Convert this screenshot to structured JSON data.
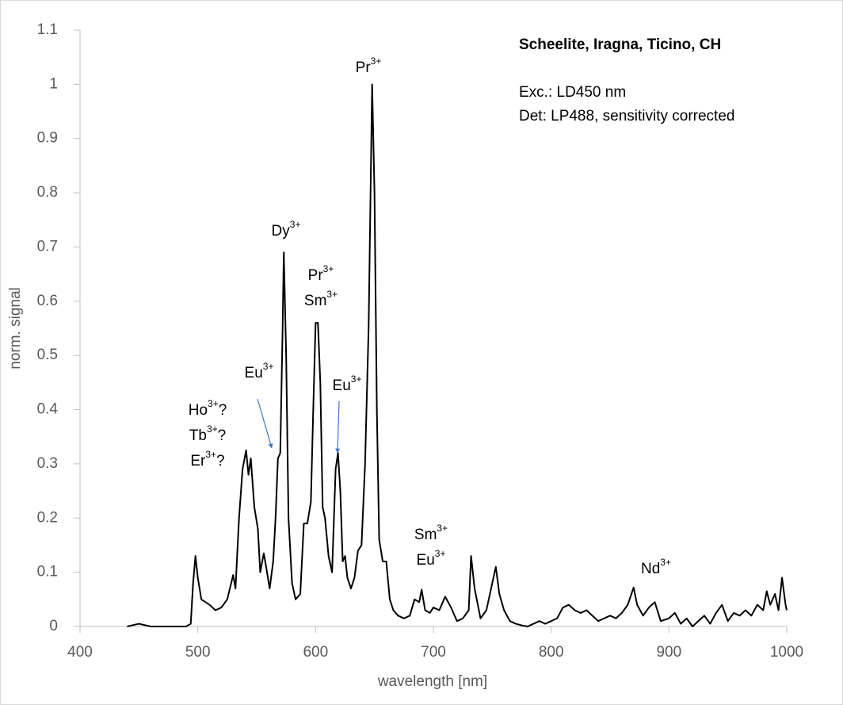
{
  "chart_data": {
    "type": "line",
    "xlabel": "wavelength [nm]",
    "ylabel": "norm. signal",
    "info": {
      "title": "Scheelite, Iragna, Ticino, CH",
      "lines": [
        "Exc.: LD450 nm",
        "Det: LP488, sensitivity corrected"
      ]
    },
    "xlim": [
      400,
      1000
    ],
    "xticks": [
      400,
      500,
      600,
      700,
      800,
      900,
      1000
    ],
    "ylim": [
      0,
      1.1
    ],
    "yticks": [
      0,
      0.1,
      0.2,
      0.3,
      0.4,
      0.5,
      0.6,
      0.7,
      0.8,
      0.9,
      1,
      1.1
    ],
    "grid": false,
    "x": [
      440,
      450,
      460,
      470,
      480,
      490,
      494,
      496,
      498,
      500,
      503,
      510,
      515,
      520,
      525,
      530,
      532,
      535,
      538,
      541,
      543,
      545,
      548,
      551,
      553,
      556,
      558,
      561,
      564,
      566,
      568,
      570,
      572,
      573,
      575,
      577,
      580,
      583,
      587,
      590,
      593,
      596,
      598,
      600,
      602,
      604,
      606,
      608,
      611,
      614,
      617,
      619,
      621,
      623,
      625,
      627,
      630,
      633,
      636,
      639,
      642,
      645,
      648,
      650,
      652,
      654,
      657,
      660,
      663,
      666,
      670,
      675,
      680,
      684,
      688,
      690,
      693,
      697,
      700,
      705,
      710,
      715,
      720,
      725,
      730,
      732,
      735,
      740,
      745,
      750,
      753,
      756,
      760,
      765,
      770,
      775,
      780,
      785,
      790,
      795,
      800,
      805,
      810,
      815,
      820,
      825,
      830,
      835,
      840,
      845,
      850,
      855,
      860,
      865,
      870,
      873,
      878,
      883,
      888,
      893,
      900,
      905,
      910,
      915,
      920,
      925,
      930,
      935,
      940,
      945,
      950,
      955,
      960,
      965,
      970,
      975,
      980,
      983,
      986,
      990,
      993,
      996,
      999,
      1000
    ],
    "series": [
      {
        "name": "spectrum",
        "color": "#000000",
        "values": [
          0,
          0.005,
          0,
          0,
          0,
          0,
          0.005,
          0.08,
          0.13,
          0.09,
          0.05,
          0.04,
          0.03,
          0.035,
          0.05,
          0.095,
          0.07,
          0.2,
          0.29,
          0.325,
          0.28,
          0.31,
          0.22,
          0.18,
          0.1,
          0.135,
          0.11,
          0.07,
          0.12,
          0.2,
          0.31,
          0.32,
          0.55,
          0.69,
          0.5,
          0.2,
          0.08,
          0.05,
          0.06,
          0.19,
          0.19,
          0.23,
          0.4,
          0.56,
          0.56,
          0.45,
          0.22,
          0.2,
          0.13,
          0.1,
          0.29,
          0.32,
          0.25,
          0.12,
          0.13,
          0.09,
          0.07,
          0.09,
          0.14,
          0.15,
          0.3,
          0.55,
          1.0,
          0.8,
          0.4,
          0.16,
          0.12,
          0.12,
          0.05,
          0.03,
          0.02,
          0.015,
          0.02,
          0.05,
          0.045,
          0.068,
          0.03,
          0.025,
          0.035,
          0.03,
          0.055,
          0.035,
          0.01,
          0.015,
          0.03,
          0.13,
          0.07,
          0.015,
          0.03,
          0.08,
          0.11,
          0.06,
          0.03,
          0.01,
          0.005,
          0.002,
          0,
          0.005,
          0.01,
          0.005,
          0.01,
          0.015,
          0.035,
          0.04,
          0.03,
          0.025,
          0.03,
          0.02,
          0.01,
          0.015,
          0.02,
          0.015,
          0.025,
          0.04,
          0.072,
          0.04,
          0.02,
          0.035,
          0.045,
          0.01,
          0.015,
          0.025,
          0.005,
          0.015,
          0,
          0.01,
          0.02,
          0.005,
          0.025,
          0.04,
          0.01,
          0.025,
          0.02,
          0.03,
          0.02,
          0.04,
          0.03,
          0.065,
          0.04,
          0.06,
          0.03,
          0.09,
          0.04,
          0.03
        ]
      }
    ],
    "annotations": [
      {
        "lines": [
          {
            "base": "Ho",
            "sup": "3+",
            "tail": "?"
          },
          {
            "base": "Tb",
            "sup": "3+",
            "tail": "?"
          },
          {
            "base": "Er",
            "sup": "3+",
            "tail": "?"
          }
        ]
      },
      {
        "lines": [
          {
            "base": "Eu",
            "sup": "3+"
          }
        ]
      },
      {
        "lines": [
          {
            "base": "Dy",
            "sup": "3+"
          }
        ]
      },
      {
        "lines": [
          {
            "base": "Pr",
            "sup": "3+"
          },
          {
            "base": "Sm",
            "sup": "3+"
          }
        ]
      },
      {
        "lines": [
          {
            "base": "Eu",
            "sup": "3+"
          }
        ]
      },
      {
        "lines": [
          {
            "base": "Pr",
            "sup": "3+"
          }
        ]
      },
      {
        "lines": [
          {
            "base": "Sm",
            "sup": "3+"
          },
          {
            "base": "Eu",
            "sup": "3+"
          }
        ]
      },
      {
        "lines": [
          {
            "base": "Nd",
            "sup": "3+"
          }
        ]
      }
    ]
  }
}
